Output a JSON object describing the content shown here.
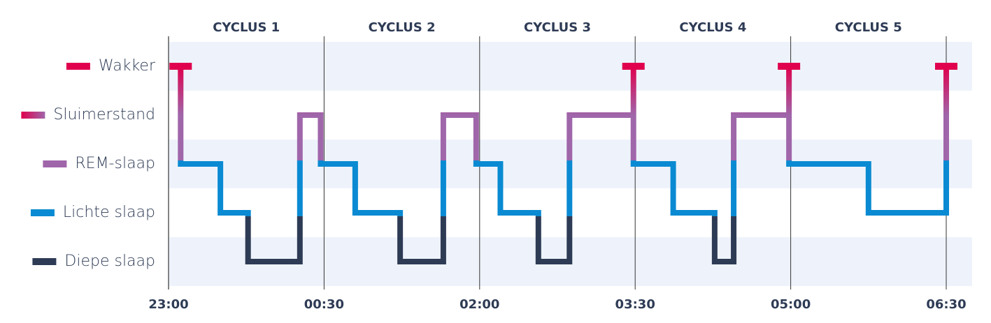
{
  "chart_data": {
    "type": "hypnogram",
    "y_categories": [
      "Wakker",
      "Sluimerstand",
      "REM-slaap",
      "Lichte slaap",
      "Diepe slaap"
    ],
    "category_colors": [
      "#e0004d",
      "#a066aa",
      "#a066aa",
      "#0a8ad2",
      "#2e3b55"
    ],
    "xlim": [
      0,
      450
    ],
    "xticks": [
      {
        "value": 0,
        "label": "23:00"
      },
      {
        "value": 90,
        "label": "00:30"
      },
      {
        "value": 180,
        "label": "02:00"
      },
      {
        "value": 270,
        "label": "03:30"
      },
      {
        "value": 360,
        "label": "05:00"
      },
      {
        "value": 450,
        "label": "06:30"
      }
    ],
    "cycles": [
      "CYCLUS 1",
      "CYCLUS 2",
      "CYCLUS 3",
      "CYCLUS 4",
      "CYCLUS 5"
    ],
    "x": [
      7,
      7,
      30,
      30,
      46,
      46,
      76,
      76,
      88,
      88,
      108,
      108,
      134,
      134,
      159,
      159,
      178,
      178,
      192,
      192,
      214,
      214,
      232,
      232,
      269,
      269,
      269,
      292,
      292,
      316,
      316,
      327,
      327,
      359,
      359,
      359,
      405,
      405,
      450,
      450
    ],
    "values": [
      0,
      2,
      2,
      3,
      3,
      4,
      4,
      1,
      1,
      2,
      2,
      3,
      3,
      4,
      4,
      1,
      1,
      2,
      2,
      3,
      3,
      4,
      4,
      1,
      1,
      0,
      2,
      2,
      3,
      3,
      4,
      4,
      1,
      1,
      0,
      2,
      2,
      3,
      3,
      0
    ]
  }
}
